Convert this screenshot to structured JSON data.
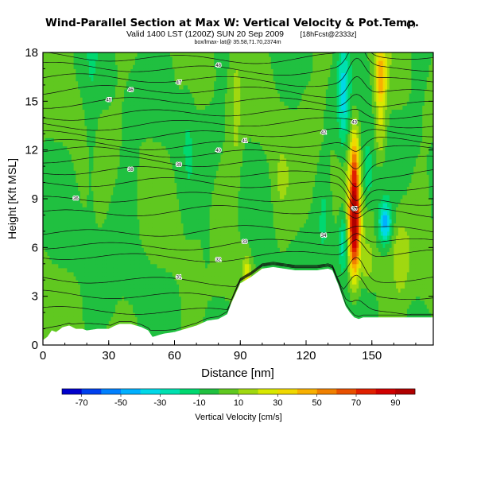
{
  "header": {
    "title": "Wind-Parallel Section at Max W: Vertical Velocity & Pot.Temp.",
    "copyright": "(C)",
    "valid_line": "Valid 1400 LST (1200Z) SUN 20 Sep 2009",
    "forecast_tag": "[18hFcst@2333z]",
    "subline": "box/lmax- lat@ 35.58,71.70,2374m"
  },
  "chart_data": {
    "type": "heatmap",
    "title": "Wind-Parallel Section at Max W: Vertical Velocity & Pot.Temp.",
    "xlabel": "Distance [nm]",
    "ylabel": "Height [Kft MSL]",
    "xlim": [
      0,
      178
    ],
    "ylim": [
      0,
      18
    ],
    "x_ticks": [
      0,
      30,
      60,
      90,
      120,
      150
    ],
    "y_ticks": [
      0,
      3,
      6,
      9,
      12,
      15,
      18
    ],
    "colorbar": {
      "label": "Vertical Velocity [cm/s]",
      "ticks": [
        -70,
        -50,
        -30,
        -10,
        10,
        30,
        50,
        70,
        90
      ],
      "range": [
        -80,
        100
      ],
      "colors": [
        "#0000cc",
        "#0040ee",
        "#0080ff",
        "#00b0ff",
        "#00d8e8",
        "#00e0b0",
        "#00d870",
        "#20c040",
        "#60c820",
        "#a0d810",
        "#d8e800",
        "#f0d800",
        "#f8b000",
        "#f08000",
        "#e85000",
        "#e02000",
        "#d00000",
        "#b00000"
      ]
    },
    "velocity_field": {
      "background": 0,
      "features": [
        {
          "x": 142,
          "z": 7.5,
          "sx": 2.5,
          "sz": 3.2,
          "w": 95
        },
        {
          "x": 142,
          "z": 11.5,
          "sx": 2.0,
          "sz": 2.5,
          "w": 35
        },
        {
          "x": 154,
          "z": 16.5,
          "sx": 2.5,
          "sz": 2.0,
          "w": 45
        },
        {
          "x": 154,
          "z": 13.0,
          "sx": 2.5,
          "sz": 1.8,
          "w": 22
        },
        {
          "x": 137,
          "z": 15.5,
          "sx": 2.5,
          "sz": 3.2,
          "w": -30
        },
        {
          "x": 137,
          "z": 6.5,
          "sx": 2.0,
          "sz": 1.8,
          "w": -28
        },
        {
          "x": 156,
          "z": 7.5,
          "sx": 2.8,
          "sz": 1.2,
          "w": -45
        },
        {
          "x": 148,
          "z": 10.5,
          "sx": 2.5,
          "sz": 2.0,
          "w": -18
        },
        {
          "x": 148,
          "z": 5.0,
          "sx": 2.5,
          "sz": 1.2,
          "w": 18
        },
        {
          "x": 163,
          "z": 5.5,
          "sx": 4.0,
          "sz": 2.5,
          "w": 15
        },
        {
          "x": 93,
          "z": 4.0,
          "sx": 2.0,
          "sz": 1.6,
          "w": 28
        },
        {
          "x": 88,
          "z": 14.0,
          "sx": 2.5,
          "sz": 5.0,
          "w": 12
        },
        {
          "x": 66,
          "z": 13.5,
          "sx": 3.0,
          "sz": 4.0,
          "w": -6
        },
        {
          "x": 22,
          "z": 12.0,
          "sx": 3.0,
          "sz": 5.0,
          "w": -8
        },
        {
          "x": 40,
          "z": 11.0,
          "sx": 3.0,
          "sz": 4.0,
          "w": -7
        },
        {
          "x": 108,
          "z": 9.5,
          "sx": 4.0,
          "sz": 3.0,
          "w": 8
        },
        {
          "x": 120,
          "z": 12.0,
          "sx": 3.0,
          "sz": 4.0,
          "w": 6
        },
        {
          "x": 30,
          "z": 3.5,
          "sx": 3.0,
          "sz": 2.0,
          "w": -6
        },
        {
          "x": 75,
          "z": 6.0,
          "sx": 3.0,
          "sz": 2.5,
          "w": -5
        },
        {
          "x": 128,
          "z": 8.0,
          "sx": 2.0,
          "sz": 2.0,
          "w": -10
        }
      ]
    },
    "terrain": {
      "x": [
        0,
        2,
        4,
        6,
        9,
        12,
        15,
        18,
        20,
        25,
        30,
        33,
        35,
        40,
        45,
        48,
        50,
        55,
        60,
        65,
        70,
        75,
        80,
        84,
        86,
        88,
        90,
        95,
        100,
        105,
        110,
        115,
        120,
        125,
        130,
        132,
        135,
        138,
        140,
        142,
        144,
        146,
        150,
        155,
        160,
        165,
        170,
        175,
        178
      ],
      "z": [
        0.3,
        0.5,
        0.9,
        0.8,
        1.1,
        1.2,
        1.0,
        1.0,
        0.9,
        1.0,
        1.0,
        1.2,
        1.3,
        1.3,
        1.1,
        0.9,
        0.5,
        0.7,
        0.8,
        1.0,
        1.2,
        1.5,
        1.6,
        1.9,
        2.6,
        3.2,
        3.8,
        4.2,
        4.7,
        4.8,
        4.7,
        4.6,
        4.6,
        4.6,
        4.7,
        4.6,
        3.6,
        2.4,
        2.0,
        1.7,
        1.6,
        1.7,
        1.7,
        1.7,
        1.7,
        1.7,
        1.7,
        1.7,
        1.7
      ]
    },
    "theta_contours": [
      {
        "base": 1.0,
        "label": ""
      },
      {
        "base": 2.0,
        "label": ""
      },
      {
        "base": 3.0,
        "label": ""
      },
      {
        "base": 4.0,
        "label": "31"
      },
      {
        "base": 5.5,
        "label": "32"
      },
      {
        "base": 6.2,
        "label": "33"
      },
      {
        "base": 7.0,
        "label": "34"
      },
      {
        "base": 8.2,
        "label": "35"
      },
      {
        "base": 9.0,
        "label": "36"
      },
      {
        "base": 9.9,
        "label": ""
      },
      {
        "base": 10.6,
        "label": "38"
      },
      {
        "base": 11.3,
        "label": "39"
      },
      {
        "base": 11.9,
        "label": "40"
      },
      {
        "base": 12.4,
        "label": "41"
      },
      {
        "base": 13.0,
        "label": "42"
      },
      {
        "base": 13.6,
        "label": "43"
      },
      {
        "base": 14.2,
        "label": ""
      },
      {
        "base": 14.9,
        "label": "45"
      },
      {
        "base": 15.6,
        "label": "46"
      },
      {
        "base": 16.3,
        "label": "47"
      },
      {
        "base": 17.0,
        "label": "48"
      },
      {
        "base": 17.7,
        "label": ""
      }
    ]
  }
}
